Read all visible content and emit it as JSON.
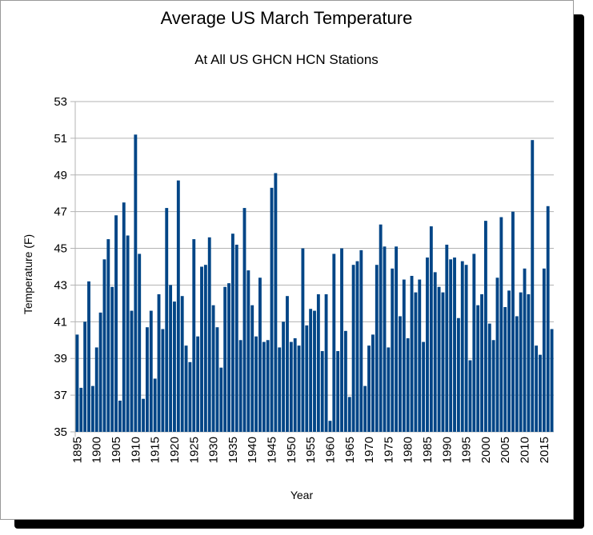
{
  "chart_data": {
    "type": "bar",
    "title": "Average US March Temperature",
    "subtitle": "At All US GHCN HCN Stations",
    "xlabel": "Year",
    "ylabel": "Temperature (F)",
    "ylim": [
      35,
      53
    ],
    "y_ticks": [
      "35",
      "37",
      "39",
      "41",
      "43",
      "45",
      "47",
      "49",
      "51",
      "53"
    ],
    "x_tick_labels": [
      "1895",
      "1900",
      "1905",
      "1910",
      "1915",
      "1920",
      "1925",
      "1930",
      "1935",
      "1940",
      "1945",
      "1950",
      "1955",
      "1960",
      "1965",
      "1970",
      "1975",
      "1980",
      "1985",
      "1990",
      "1995",
      "2000",
      "2005",
      "2010",
      "2015"
    ],
    "grid": true,
    "series_color": "#004586",
    "x_start": 1895,
    "values": [
      40.3,
      37.4,
      41.0,
      43.2,
      37.5,
      39.6,
      41.5,
      44.4,
      45.5,
      42.9,
      46.8,
      36.7,
      47.5,
      45.7,
      41.6,
      51.2,
      44.7,
      36.8,
      40.7,
      41.6,
      37.9,
      42.5,
      40.6,
      47.2,
      43.0,
      42.1,
      48.7,
      42.4,
      39.7,
      38.8,
      45.5,
      40.2,
      44.0,
      44.1,
      45.6,
      41.9,
      40.7,
      38.5,
      42.9,
      43.1,
      45.8,
      45.2,
      40.0,
      47.2,
      43.8,
      41.9,
      40.2,
      43.4,
      39.9,
      40.0,
      48.3,
      49.1,
      39.6,
      41.0,
      42.4,
      39.9,
      40.1,
      39.7,
      45.0,
      40.8,
      41.7,
      41.6,
      42.5,
      39.4,
      42.5,
      35.6,
      44.7,
      39.4,
      45.0,
      40.5,
      36.9,
      44.1,
      44.3,
      44.9,
      37.5,
      39.7,
      40.3,
      44.1,
      46.3,
      45.1,
      39.6,
      43.9,
      45.1,
      41.3,
      43.3,
      40.1,
      43.5,
      42.6,
      43.3,
      39.9,
      44.5,
      46.2,
      43.7,
      42.9,
      42.6,
      45.2,
      44.4,
      44.5,
      41.2,
      44.3,
      44.1,
      38.9,
      44.7,
      41.9,
      42.5,
      46.5,
      40.9,
      40.0,
      43.4,
      46.7,
      41.8,
      42.7,
      47.0,
      41.3,
      42.6,
      43.9,
      42.5,
      50.9,
      39.7,
      39.2,
      43.9,
      47.3,
      40.6
    ]
  }
}
